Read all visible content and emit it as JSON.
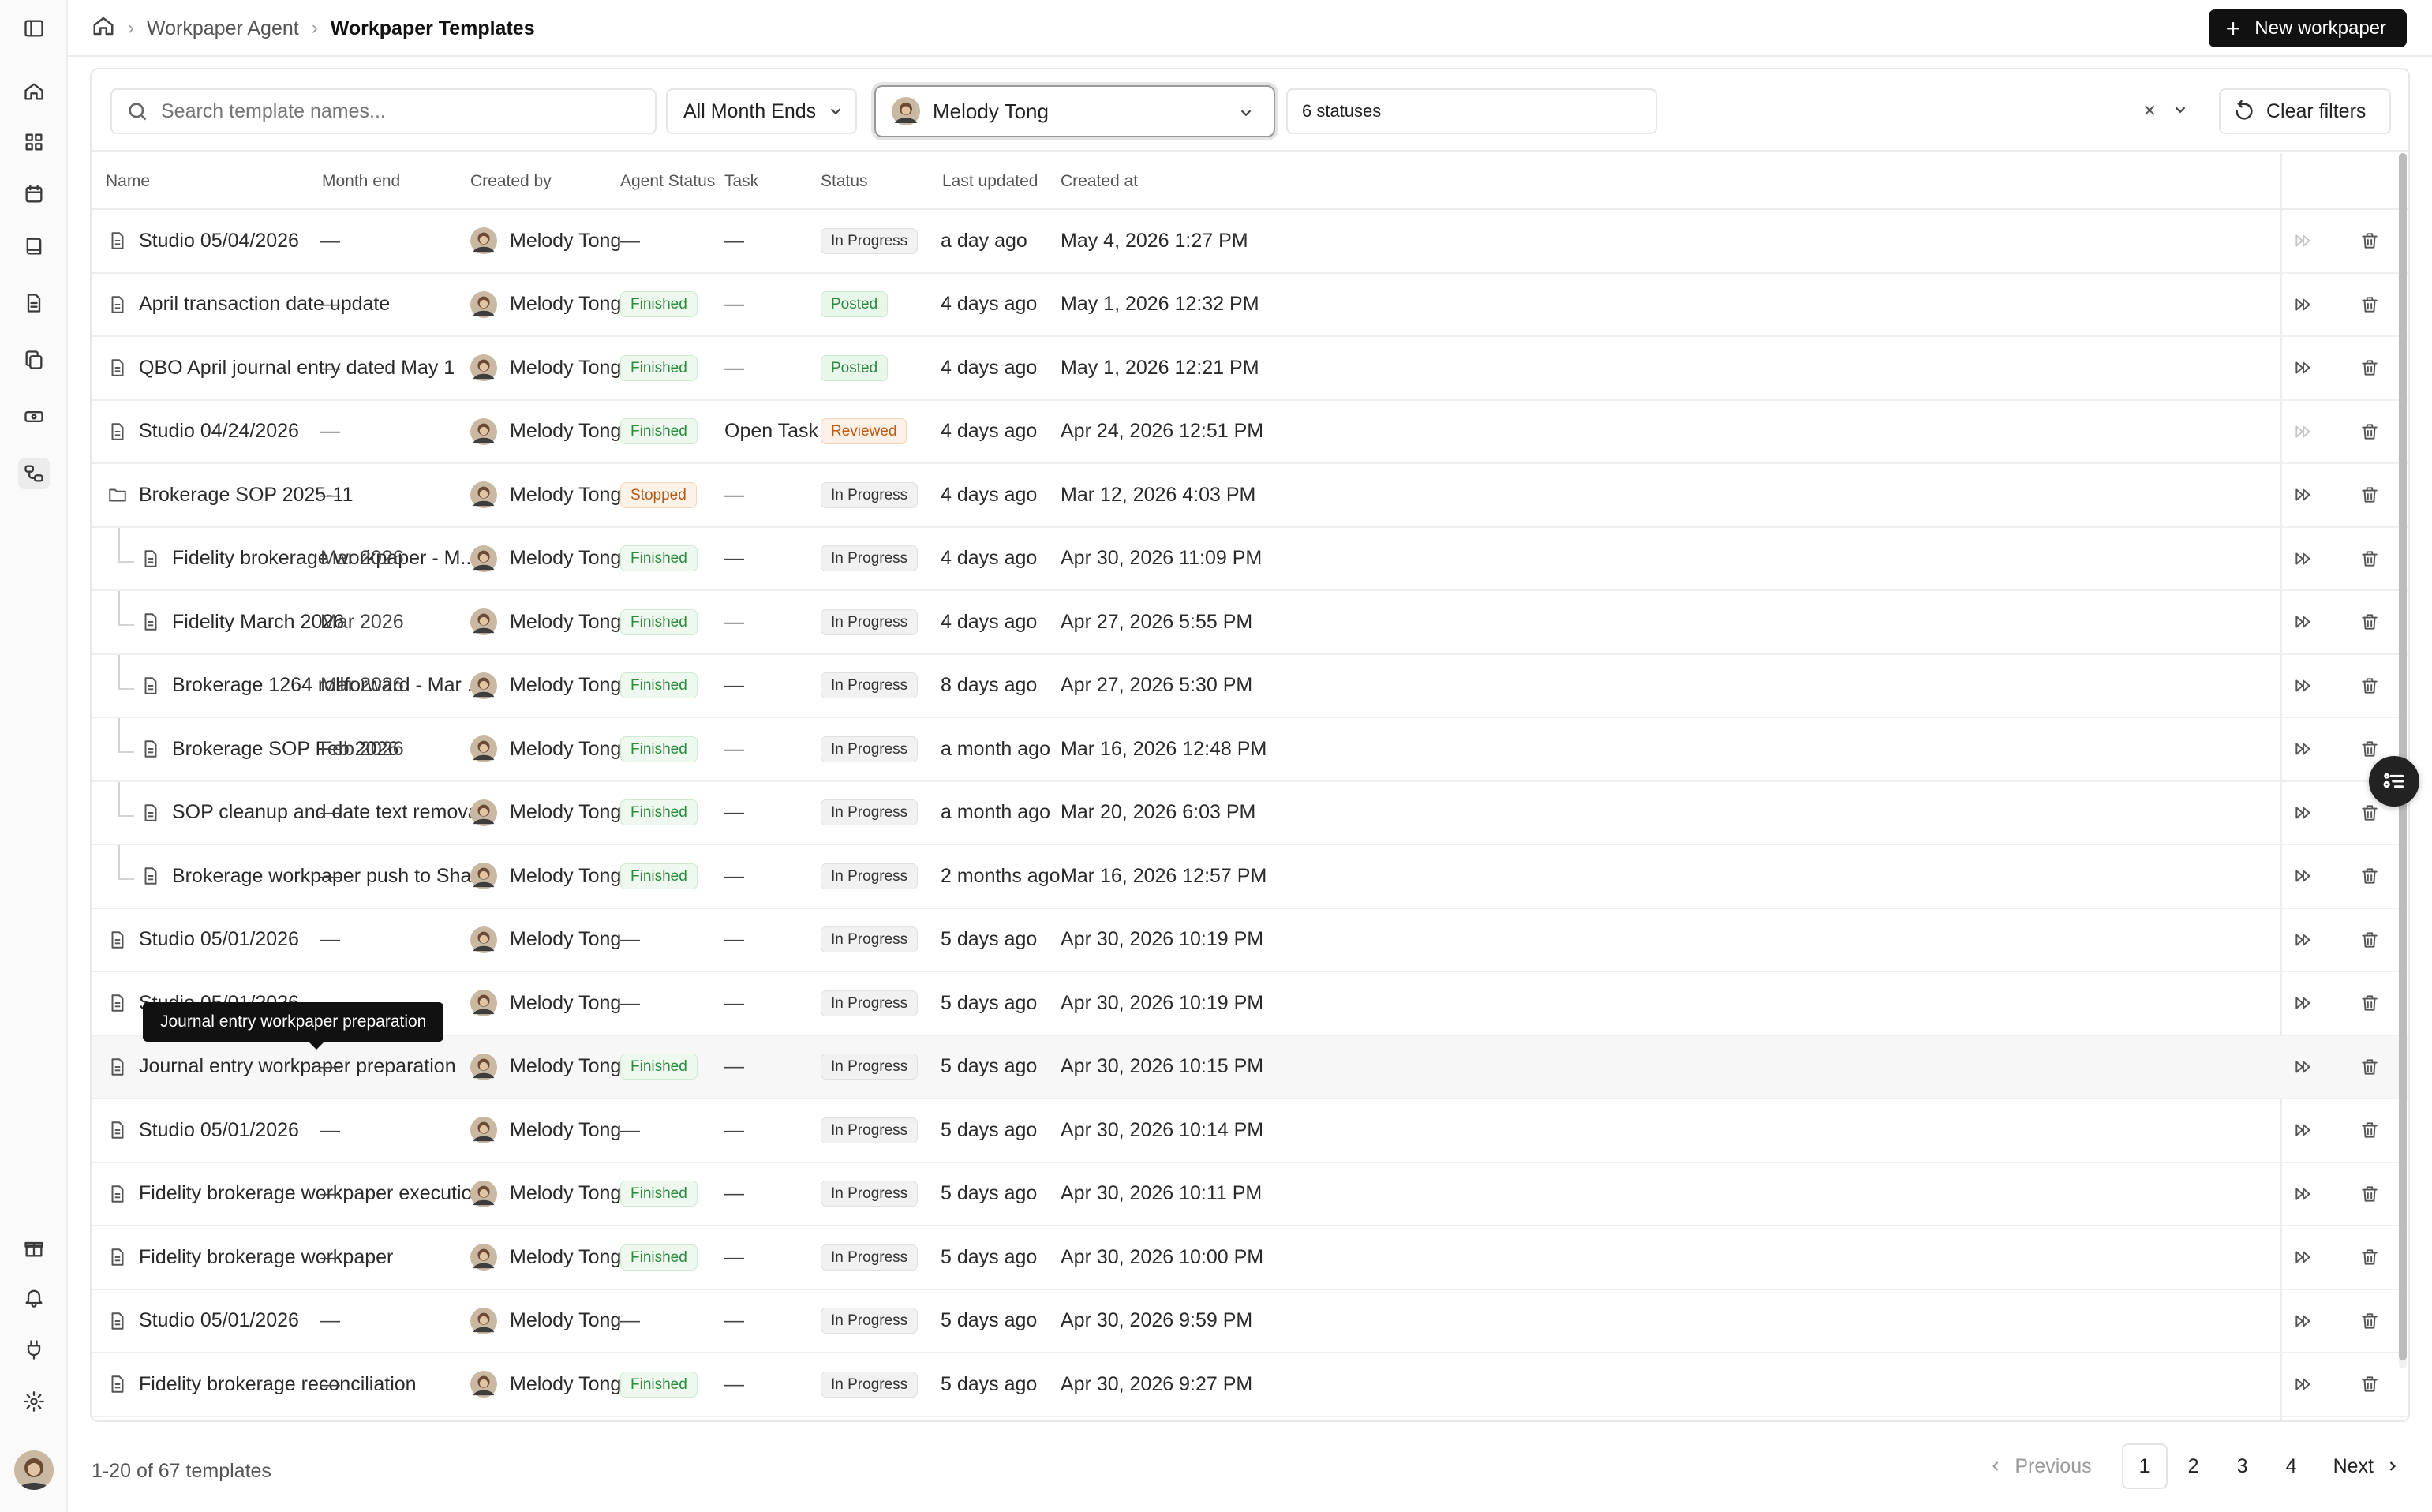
{
  "breadcrumb": {
    "parent": "Workpaper Agent",
    "current": "Workpaper Templates"
  },
  "header": {
    "new_button": "New workpaper"
  },
  "filters": {
    "search_placeholder": "Search template names...",
    "month_end": "All Month Ends",
    "user": "Melody Tong",
    "statuses": "6 statuses",
    "clear_label": "Clear filters"
  },
  "columns": {
    "name": "Name",
    "month_end": "Month end",
    "created_by": "Created by",
    "agent_status": "Agent Status",
    "task": "Task",
    "status": "Status",
    "last_updated": "Last updated",
    "created_at": "Created at"
  },
  "rows": [
    {
      "name": "Studio 05/04/2026",
      "type": "file",
      "child": false,
      "month_end": "—",
      "created_by": "Melody Tong",
      "agent_status": "—",
      "task": "—",
      "status": "In Progress",
      "last_updated": "a day ago",
      "created_at": "May 4, 2026 1:27 PM",
      "run_dim": true
    },
    {
      "name": "April transaction date update",
      "type": "file",
      "child": false,
      "month_end": "—",
      "created_by": "Melody Tong",
      "agent_status": "Finished",
      "task": "—",
      "status": "Posted",
      "last_updated": "4 days ago",
      "created_at": "May 1, 2026 12:32 PM",
      "run_dim": false
    },
    {
      "name": "QBO April journal entry dated May 1",
      "type": "file",
      "child": false,
      "month_end": "—",
      "created_by": "Melody Tong",
      "agent_status": "Finished",
      "task": "—",
      "status": "Posted",
      "last_updated": "4 days ago",
      "created_at": "May 1, 2026 12:21 PM",
      "run_dim": false
    },
    {
      "name": "Studio 04/24/2026",
      "type": "file",
      "child": false,
      "month_end": "—",
      "created_by": "Melody Tong",
      "agent_status": "Finished",
      "task": "Open Task",
      "status": "Reviewed",
      "last_updated": "4 days ago",
      "created_at": "Apr 24, 2026 12:51 PM",
      "run_dim": true
    },
    {
      "name": "Brokerage SOP 2025-11",
      "type": "folder",
      "child": false,
      "month_end": "—",
      "created_by": "Melody Tong",
      "agent_status": "Stopped",
      "task": "—",
      "status": "In Progress",
      "last_updated": "4 days ago",
      "created_at": "Mar 12, 2026 4:03 PM",
      "run_dim": false
    },
    {
      "name": "Fidelity brokerage workpaper - M...",
      "type": "file",
      "child": true,
      "month_end": "Mar 2026",
      "created_by": "Melody Tong",
      "agent_status": "Finished",
      "task": "—",
      "status": "In Progress",
      "last_updated": "4 days ago",
      "created_at": "Apr 30, 2026 11:09 PM",
      "run_dim": false
    },
    {
      "name": "Fidelity March 2026",
      "type": "file",
      "child": true,
      "month_end": "Mar 2026",
      "created_by": "Melody Tong",
      "agent_status": "Finished",
      "task": "—",
      "status": "In Progress",
      "last_updated": "4 days ago",
      "created_at": "Apr 27, 2026 5:55 PM",
      "run_dim": false
    },
    {
      "name": "Brokerage 1264 rollforward - Mar ...",
      "type": "file",
      "child": true,
      "month_end": "Mar 2026",
      "created_by": "Melody Tong",
      "agent_status": "Finished",
      "task": "—",
      "status": "In Progress",
      "last_updated": "8 days ago",
      "created_at": "Apr 27, 2026 5:30 PM",
      "run_dim": false
    },
    {
      "name": "Brokerage SOP Feb 2026",
      "type": "file",
      "child": true,
      "month_end": "Feb 2026",
      "created_by": "Melody Tong",
      "agent_status": "Finished",
      "task": "—",
      "status": "In Progress",
      "last_updated": "a month ago",
      "created_at": "Mar 16, 2026 12:48 PM",
      "run_dim": false
    },
    {
      "name": "SOP cleanup and date text removal",
      "type": "file",
      "child": true,
      "month_end": "—",
      "created_by": "Melody Tong",
      "agent_status": "Finished",
      "task": "—",
      "status": "In Progress",
      "last_updated": "a month ago",
      "created_at": "Mar 20, 2026 6:03 PM",
      "run_dim": false
    },
    {
      "name": "Brokerage workpaper push to Shar...",
      "type": "file",
      "child": true,
      "month_end": "—",
      "created_by": "Melody Tong",
      "agent_status": "Finished",
      "task": "—",
      "status": "In Progress",
      "last_updated": "2 months ago",
      "created_at": "Mar 16, 2026 12:57 PM",
      "run_dim": false
    },
    {
      "name": "Studio 05/01/2026",
      "type": "file",
      "child": false,
      "month_end": "—",
      "created_by": "Melody Tong",
      "agent_status": "—",
      "task": "—",
      "status": "In Progress",
      "last_updated": "5 days ago",
      "created_at": "Apr 30, 2026 10:19 PM",
      "run_dim": false
    },
    {
      "name": "Studio 05/01/2026",
      "type": "file",
      "child": false,
      "month_end": "—",
      "created_by": "Melody Tong",
      "agent_status": "—",
      "task": "—",
      "status": "In Progress",
      "last_updated": "5 days ago",
      "created_at": "Apr 30, 2026 10:19 PM",
      "run_dim": false
    },
    {
      "name": "Journal entry workpaper preparation",
      "type": "file",
      "child": false,
      "month_end": "—",
      "created_by": "Melody Tong",
      "agent_status": "Finished",
      "task": "—",
      "status": "In Progress",
      "last_updated": "5 days ago",
      "created_at": "Apr 30, 2026 10:15 PM",
      "run_dim": false,
      "hover": true
    },
    {
      "name": "Studio 05/01/2026",
      "type": "file",
      "child": false,
      "month_end": "—",
      "created_by": "Melody Tong",
      "agent_status": "—",
      "task": "—",
      "status": "In Progress",
      "last_updated": "5 days ago",
      "created_at": "Apr 30, 2026 10:14 PM",
      "run_dim": false
    },
    {
      "name": "Fidelity brokerage workpaper execution",
      "type": "file",
      "child": false,
      "month_end": "—",
      "created_by": "Melody Tong",
      "agent_status": "Finished",
      "task": "—",
      "status": "In Progress",
      "last_updated": "5 days ago",
      "created_at": "Apr 30, 2026 10:11 PM",
      "run_dim": false
    },
    {
      "name": "Fidelity brokerage workpaper",
      "type": "file",
      "child": false,
      "month_end": "—",
      "created_by": "Melody Tong",
      "agent_status": "Finished",
      "task": "—",
      "status": "In Progress",
      "last_updated": "5 days ago",
      "created_at": "Apr 30, 2026 10:00 PM",
      "run_dim": false
    },
    {
      "name": "Studio 05/01/2026",
      "type": "file",
      "child": false,
      "month_end": "—",
      "created_by": "Melody Tong",
      "agent_status": "—",
      "task": "—",
      "status": "In Progress",
      "last_updated": "5 days ago",
      "created_at": "Apr 30, 2026 9:59 PM",
      "run_dim": false
    },
    {
      "name": "Fidelity brokerage reconciliation",
      "type": "file",
      "child": false,
      "month_end": "—",
      "created_by": "Melody Tong",
      "agent_status": "Finished",
      "task": "—",
      "status": "In Progress",
      "last_updated": "5 days ago",
      "created_at": "Apr 30, 2026 9:27 PM",
      "run_dim": false
    }
  ],
  "tooltip": "Journal entry workpaper preparation",
  "footer": {
    "count": "1-20 of 67 templates",
    "previous": "Previous",
    "next": "Next",
    "pages": [
      "1",
      "2",
      "3",
      "4"
    ],
    "current_page": "1"
  },
  "icons": {
    "rail": [
      "sidebar-toggle-icon",
      "home-icon",
      "dashboard-icon",
      "calendar-icon",
      "book-icon",
      "document-icon",
      "copy-icon",
      "money-icon",
      "workflow-icon",
      "gift-icon",
      "bell-icon",
      "plug-icon",
      "gear-icon"
    ]
  }
}
